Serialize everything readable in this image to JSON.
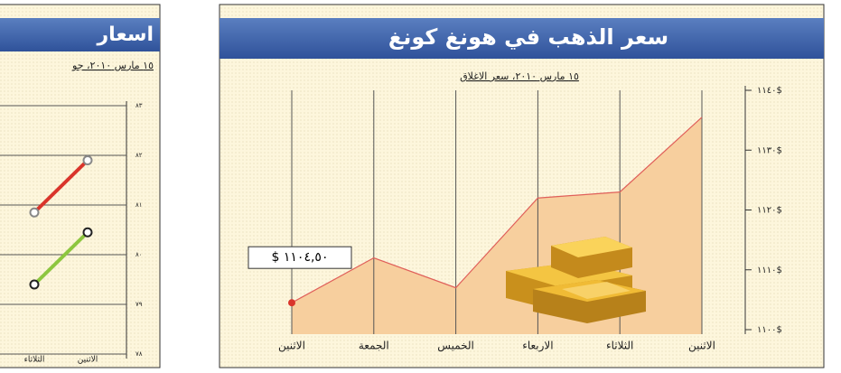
{
  "chart_data": [
    {
      "type": "line",
      "title": "اسعار",
      "subtitle": "١٥ مارس ٢٠١٠، جو",
      "x_reversed": true,
      "grid": true,
      "categories": [
        "الاثنين",
        "الثلاثاء"
      ],
      "series": [
        {
          "color": "#d9342b",
          "values": [
            81.9,
            80.85
          ]
        },
        {
          "color": "#8dc63f",
          "values": [
            80.45,
            79.4
          ]
        }
      ],
      "ylim": [
        78,
        83
      ],
      "yticks": [
        {
          "value": 83,
          "label": "٨٣"
        },
        {
          "value": 82,
          "label": "٨٢"
        },
        {
          "value": 81,
          "label": "٨١"
        },
        {
          "value": 80,
          "label": "٨٠"
        },
        {
          "value": 79,
          "label": "٧٩"
        },
        {
          "value": 78,
          "label": "٧٨"
        }
      ]
    },
    {
      "type": "area",
      "title": "سعر الذهب في هونغ كونغ",
      "subtitle": "١٥ مارس ٢٠١٠، سعر الاغلاق",
      "x_reversed": true,
      "categories": [
        "الاثنين",
        "الثلاثاء",
        "الاربعاء",
        "الخميس",
        "الجمعة",
        "الاثنين"
      ],
      "values": [
        1135.5,
        1123,
        1122,
        1107,
        1112,
        1104.5
      ],
      "value_labels": [
        null,
        null,
        null,
        null,
        null,
        "$ ١١٠٤,٥٠"
      ],
      "color": "#f7cf9e",
      "line_color": "#e0605a",
      "ylim": [
        1100,
        1140
      ],
      "yticks": [
        {
          "value": 1140,
          "label": "١١٤٠$"
        },
        {
          "value": 1130,
          "label": "١١٣٠$"
        },
        {
          "value": 1120,
          "label": "١١٢٠$"
        },
        {
          "value": 1110,
          "label": "١١١٠$"
        },
        {
          "value": 1100,
          "label": "١١٠٠$"
        }
      ]
    }
  ]
}
